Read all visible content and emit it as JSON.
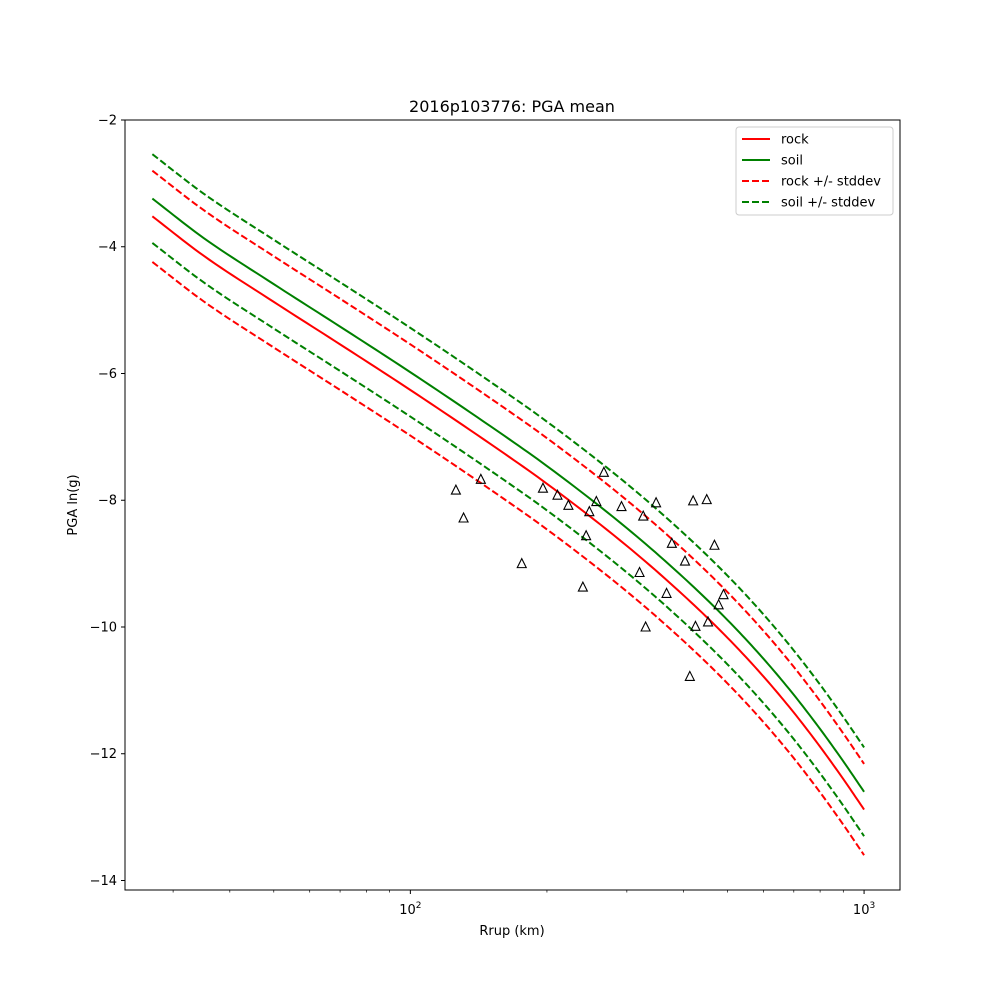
{
  "chart_data": {
    "type": "line",
    "title": "2016p103776: PGA mean",
    "xlabel": "Rrup (km)",
    "ylabel": "PGA ln(g)",
    "xscale": "log",
    "xlim": [
      23.5,
      1200
    ],
    "ylim": [
      -14.15,
      -2.0
    ],
    "x_ticks": [
      {
        "value": 100,
        "label_base": "10",
        "label_exp": "2"
      },
      {
        "value": 1000,
        "label_base": "10",
        "label_exp": "3"
      }
    ],
    "y_ticks": [
      {
        "value": -2,
        "label": "−2"
      },
      {
        "value": -4,
        "label": "−4"
      },
      {
        "value": -6,
        "label": "−6"
      },
      {
        "value": -8,
        "label": "−8"
      },
      {
        "value": -10,
        "label": "−10"
      },
      {
        "value": -12,
        "label": "−12"
      },
      {
        "value": -14,
        "label": "−14"
      }
    ],
    "grid": false,
    "legend_position": "top-right",
    "x": [
      27,
      35,
      50,
      70,
      100,
      150,
      200,
      300,
      400,
      500,
      600,
      700,
      800,
      900,
      1000
    ],
    "series": [
      {
        "name": "rock",
        "color": "#ff0000",
        "style": "solid",
        "legend": true,
        "values": [
          -3.52,
          -4.14,
          -4.87,
          -5.54,
          -6.26,
          -7.11,
          -7.74,
          -8.72,
          -9.5,
          -10.17,
          -10.78,
          -11.35,
          -11.89,
          -12.4,
          -12.88
        ]
      },
      {
        "name": "soil",
        "color": "#008000",
        "style": "solid",
        "legend": true,
        "values": [
          -3.24,
          -3.86,
          -4.59,
          -5.26,
          -5.98,
          -6.83,
          -7.46,
          -8.44,
          -9.22,
          -9.89,
          -10.5,
          -11.07,
          -11.61,
          -12.12,
          -12.6
        ]
      },
      {
        "name": "rock +/- stddev",
        "color": "#ff0000",
        "style": "dashed",
        "legend": true,
        "values": [
          -2.8,
          -3.42,
          -4.15,
          -4.82,
          -5.54,
          -6.39,
          -7.02,
          -8.0,
          -8.78,
          -9.45,
          -10.06,
          -10.63,
          -11.17,
          -11.68,
          -12.16
        ]
      },
      {
        "name": "rock +/- stddev",
        "color": "#ff0000",
        "style": "dashed",
        "legend": false,
        "values": [
          -4.24,
          -4.86,
          -5.59,
          -6.26,
          -6.98,
          -7.83,
          -8.46,
          -9.44,
          -10.22,
          -10.89,
          -11.5,
          -12.07,
          -12.61,
          -13.12,
          -13.6
        ]
      },
      {
        "name": "soil +/- stddev",
        "color": "#008000",
        "style": "dashed",
        "legend": true,
        "values": [
          -2.54,
          -3.16,
          -3.89,
          -4.56,
          -5.28,
          -6.13,
          -6.76,
          -7.74,
          -8.52,
          -9.19,
          -9.8,
          -10.37,
          -10.91,
          -11.42,
          -11.9
        ]
      },
      {
        "name": "soil +/- stddev",
        "color": "#008000",
        "style": "dashed",
        "legend": false,
        "values": [
          -3.94,
          -4.56,
          -5.29,
          -5.96,
          -6.68,
          -7.53,
          -8.16,
          -9.14,
          -9.92,
          -10.59,
          -11.2,
          -11.77,
          -12.31,
          -12.82,
          -13.3
        ]
      }
    ],
    "observations": [
      {
        "x": 126,
        "y": -7.84
      },
      {
        "x": 131,
        "y": -8.28
      },
      {
        "x": 143,
        "y": -7.67
      },
      {
        "x": 176,
        "y": -9.0
      },
      {
        "x": 196,
        "y": -7.81
      },
      {
        "x": 211,
        "y": -7.92
      },
      {
        "x": 223,
        "y": -8.08
      },
      {
        "x": 240,
        "y": -9.37
      },
      {
        "x": 244,
        "y": -8.56
      },
      {
        "x": 248,
        "y": -8.18
      },
      {
        "x": 257,
        "y": -8.02
      },
      {
        "x": 267,
        "y": -7.56
      },
      {
        "x": 292,
        "y": -8.1
      },
      {
        "x": 320,
        "y": -9.14
      },
      {
        "x": 326,
        "y": -8.25
      },
      {
        "x": 330,
        "y": -10.0
      },
      {
        "x": 348,
        "y": -8.04
      },
      {
        "x": 367,
        "y": -9.47
      },
      {
        "x": 377,
        "y": -8.68
      },
      {
        "x": 403,
        "y": -8.96
      },
      {
        "x": 413,
        "y": -10.78
      },
      {
        "x": 420,
        "y": -8.01
      },
      {
        "x": 425,
        "y": -9.99
      },
      {
        "x": 450,
        "y": -7.99
      },
      {
        "x": 453,
        "y": -9.92
      },
      {
        "x": 468,
        "y": -8.71
      },
      {
        "x": 478,
        "y": -9.65
      },
      {
        "x": 490,
        "y": -9.49
      }
    ]
  }
}
